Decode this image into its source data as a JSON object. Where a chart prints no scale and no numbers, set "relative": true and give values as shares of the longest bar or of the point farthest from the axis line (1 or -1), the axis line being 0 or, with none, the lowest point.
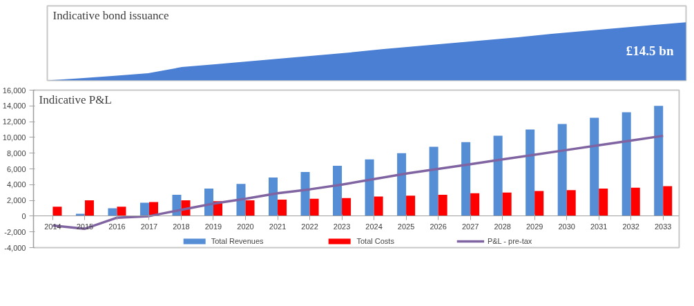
{
  "chart_data": [
    {
      "type": "area",
      "title": "Indicative bond issuance",
      "relative": true,
      "grid": false,
      "categories": [
        null,
        null,
        null,
        null,
        null,
        null,
        null,
        null,
        null,
        null,
        null,
        null,
        null,
        null,
        null,
        null,
        null,
        null,
        null,
        null
      ],
      "values": [
        0,
        0.04,
        0.08,
        0.125,
        0.23,
        0.28,
        0.33,
        0.38,
        0.43,
        0.48,
        0.54,
        0.59,
        0.64,
        0.69,
        0.74,
        0.8,
        0.85,
        0.9,
        0.95,
        1
      ],
      "color": "#4a7fd4",
      "annotations": [
        "£14.5 bn"
      ]
    },
    {
      "type": "bar",
      "title": "Indicative P&L",
      "grid": false,
      "legend": "bottom",
      "categories": [
        "2014",
        "2015",
        "2016",
        "2017",
        "2018",
        "2019",
        "2020",
        "2021",
        "2022",
        "2023",
        "2024",
        "2025",
        "2026",
        "2027",
        "2028",
        "2029",
        "2030",
        "2031",
        "2032",
        "2033"
      ],
      "ylim": [
        -4000,
        16000
      ],
      "yticks": [
        {
          "value": -4000,
          "label": "-4,000"
        },
        {
          "value": -2000,
          "label": "-2,000"
        },
        0,
        {
          "value": 2000,
          "label": "2,000"
        },
        {
          "value": 4000,
          "label": "4,000"
        },
        {
          "value": 6000,
          "label": "6,000"
        },
        {
          "value": 8000,
          "label": "8,000"
        },
        {
          "value": 10000,
          "label": "10,000"
        },
        {
          "value": 12000,
          "label": "12,000"
        },
        {
          "value": 14000,
          "label": "14,000"
        },
        {
          "value": 16000,
          "label": "16,000"
        }
      ],
      "series": [
        {
          "name": "Total Revenues",
          "color": "#558ed5",
          "values": [
            null,
            300,
            1000,
            1700,
            2700,
            3500,
            4100,
            4900,
            5600,
            6400,
            7200,
            8000,
            8800,
            9400,
            10200,
            11000,
            11700,
            12500,
            13200,
            14000
          ]
        },
        {
          "name": "Total Costs",
          "color": "#ff0000",
          "values": [
            1200,
            2000,
            1200,
            1800,
            2000,
            1900,
            2000,
            2100,
            2200,
            2300,
            2500,
            2600,
            2700,
            2900,
            3000,
            3200,
            3300,
            3500,
            3600,
            3800
          ]
        },
        {
          "name": "P&L - pre-tax",
          "type": "line",
          "color": "#8064a2",
          "values": [
            -1200,
            -1600,
            -200,
            0,
            800,
            1600,
            2200,
            2900,
            3400,
            4000,
            4700,
            5400,
            6000,
            6600,
            7200,
            7800,
            8400,
            9000,
            9600,
            10200
          ]
        }
      ]
    }
  ]
}
